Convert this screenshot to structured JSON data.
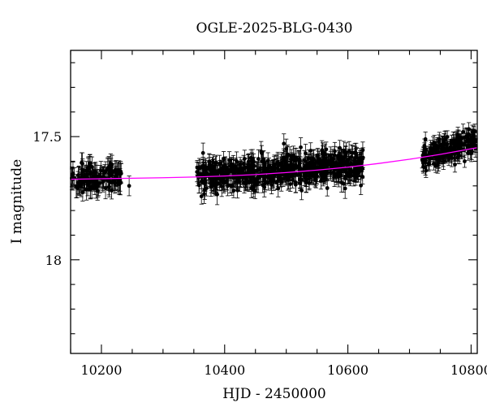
{
  "chart_data": {
    "type": "scatter",
    "title": "OGLE-2025-BLG-0430",
    "xlabel": "HJD - 2450000",
    "ylabel": "I magnitude",
    "xlim": [
      10150,
      10810
    ],
    "ylim": [
      18.38,
      17.15
    ],
    "y_inverted": true,
    "grid": false,
    "x_major_ticks": [
      10200,
      10400,
      10600,
      10800
    ],
    "x_tick_labels": [
      "10200",
      "10400",
      "10600",
      "10800"
    ],
    "x_minor_step": 50,
    "y_major_ticks": [
      17.5,
      18
    ],
    "y_tick_labels": [
      "17.5",
      "18"
    ],
    "y_minor_step": 0.1,
    "series": [
      {
        "style": "points-with-errorbars",
        "color": "#000000",
        "segments": [
          {
            "x_start": 10152,
            "x_end": 10232,
            "count": 130,
            "trend_start": 17.67,
            "trend_end": 17.665,
            "scatter": 0.025,
            "error": 0.04
          },
          {
            "x_start": 10355,
            "x_end": 10625,
            "count": 650,
            "trend_start": 17.66,
            "trend_end": 17.615,
            "scatter": 0.03,
            "error": 0.035
          },
          {
            "x_start": 10720,
            "x_end": 10808,
            "count": 200,
            "trend_start": 17.59,
            "trend_end": 17.515,
            "scatter": 0.025,
            "error": 0.03
          }
        ],
        "isolated_points": [
          {
            "x": 10215,
            "y": 17.61
          },
          {
            "x": 10222,
            "y": 17.69
          },
          {
            "x": 10232,
            "y": 17.65
          },
          {
            "x": 10245,
            "y": 17.7
          },
          {
            "x": 10356,
            "y": 17.66
          },
          {
            "x": 10375,
            "y": 17.625
          },
          {
            "x": 10385,
            "y": 17.7
          },
          {
            "x": 10405,
            "y": 17.7
          },
          {
            "x": 10500,
            "y": 17.55
          },
          {
            "x": 10602,
            "y": 17.56
          },
          {
            "x": 10622,
            "y": 17.62
          },
          {
            "x": 10722,
            "y": 17.6
          },
          {
            "x": 10727,
            "y": 17.58
          }
        ]
      },
      {
        "style": "model-curve",
        "color": "#ff00ff",
        "x": [
          10150,
          10200,
          10250,
          10300,
          10350,
          10400,
          10450,
          10500,
          10550,
          10600,
          10650,
          10700,
          10750,
          10810
        ],
        "y": [
          17.673,
          17.671,
          17.669,
          17.667,
          17.664,
          17.66,
          17.654,
          17.646,
          17.636,
          17.624,
          17.609,
          17.592,
          17.572,
          17.545
        ]
      }
    ]
  }
}
